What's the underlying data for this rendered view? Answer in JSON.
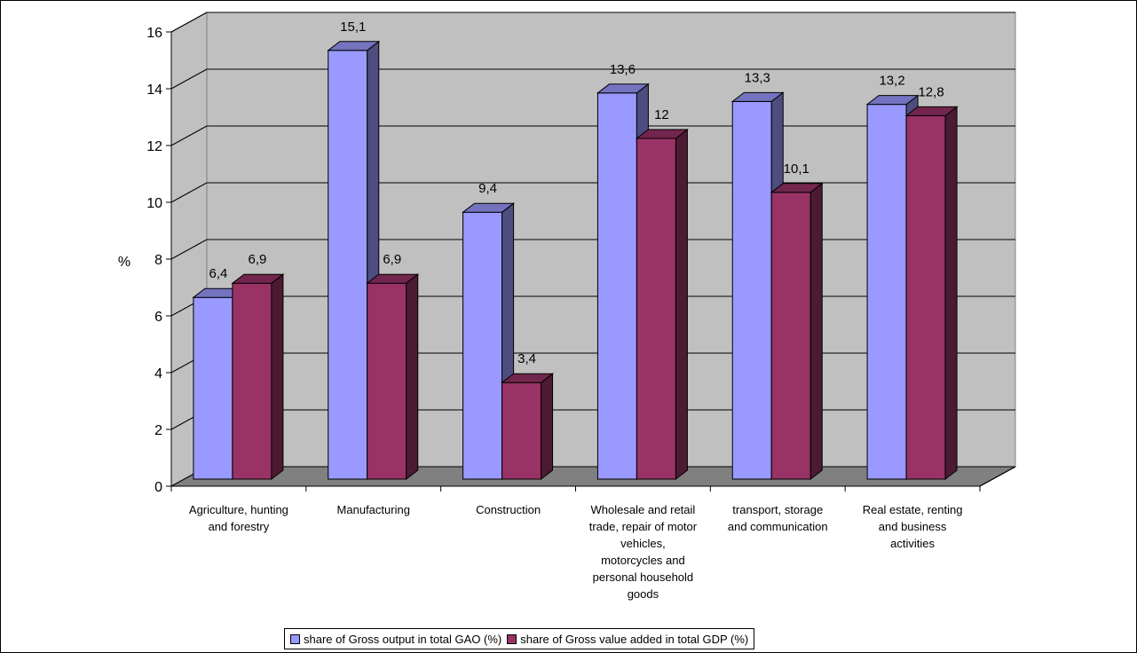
{
  "chart_data": {
    "type": "bar",
    "ylabel": "%",
    "ylim": [
      0,
      16
    ],
    "yticks": [
      "0",
      "2",
      "4",
      "6",
      "8",
      "10",
      "12",
      "14",
      "16"
    ],
    "categories": [
      [
        "Agriculture, hunting",
        "and forestry"
      ],
      [
        "Manufacturing"
      ],
      [
        "Construction"
      ],
      [
        "Wholesale and retail",
        "trade, repair of motor",
        "vehicles,",
        "motorcycles and",
        "personal household",
        "goods"
      ],
      [
        "transport, storage",
        "and communication"
      ],
      [
        "Real estate, renting",
        "and business",
        "activities"
      ]
    ],
    "series": [
      {
        "name": "share of Gross output in total GAO (%)",
        "values": [
          6.4,
          15.1,
          9.4,
          13.6,
          13.3,
          13.2
        ],
        "labels": [
          "6,4",
          "15,1",
          "9,4",
          "13,6",
          "13,3",
          "13,2"
        ],
        "color": "#9999ff",
        "side_color": "#4d4d80",
        "top_color": "#7373bf"
      },
      {
        "name": "share of Gross value added in total GDP (%)",
        "values": [
          6.9,
          6.9,
          3.4,
          12,
          10.1,
          12.8
        ],
        "labels": [
          "6,9",
          "6,9",
          "3,4",
          "12",
          "10,1",
          "12,8"
        ],
        "color": "#993366",
        "side_color": "#4d1a33",
        "top_color": "#73264d"
      }
    ],
    "grid": true,
    "legend_position": "bottom",
    "wall_color": "#c0c0c0",
    "floor_color": "#808080"
  }
}
